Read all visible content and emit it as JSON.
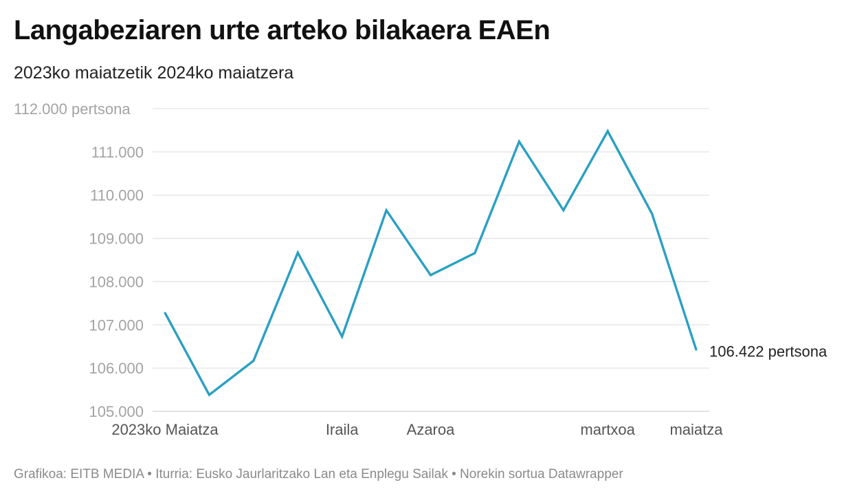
{
  "title": "Langabeziaren urte arteko bilakaera EAEn",
  "subtitle": "2023ko maiatzetik 2024ko maiatzera",
  "footer": "Grafikoa: EITB MEDIA • Iturria: Eusko Jaurlaritzako Lan eta Enplegu Sailak • Norekin sortua Datawrapper",
  "colors": {
    "line": "#2a9fc3",
    "grid": "#e3e3e3"
  },
  "chart_data": {
    "type": "line",
    "title": "Langabeziaren urte arteko bilakaera EAEn",
    "subtitle": "2023ko maiatzetik 2024ko maiatzera",
    "xlabel": "",
    "ylabel": "",
    "ylim": [
      105000,
      112000
    ],
    "grid": true,
    "legend": "none",
    "yticks": [
      105000,
      106000,
      107000,
      108000,
      109000,
      110000,
      111000,
      112000
    ],
    "ytick_labels": [
      "105.000",
      "106.000",
      "107.000",
      "108.000",
      "109.000",
      "110.000",
      "111.000",
      "112.000 pertsona"
    ],
    "xtick_indices": [
      0,
      4,
      6,
      10,
      12
    ],
    "xtick_labels": [
      "2023ko Maiatza",
      "Iraila",
      "Azaroa",
      "martxoa",
      "maiatza"
    ],
    "series": [
      {
        "values": [
          107280,
          105380,
          106170,
          108670,
          106730,
          109650,
          108150,
          108660,
          111240,
          109650,
          111480,
          109570,
          106422
        ]
      }
    ],
    "end_label": "106.422 pertsona"
  }
}
